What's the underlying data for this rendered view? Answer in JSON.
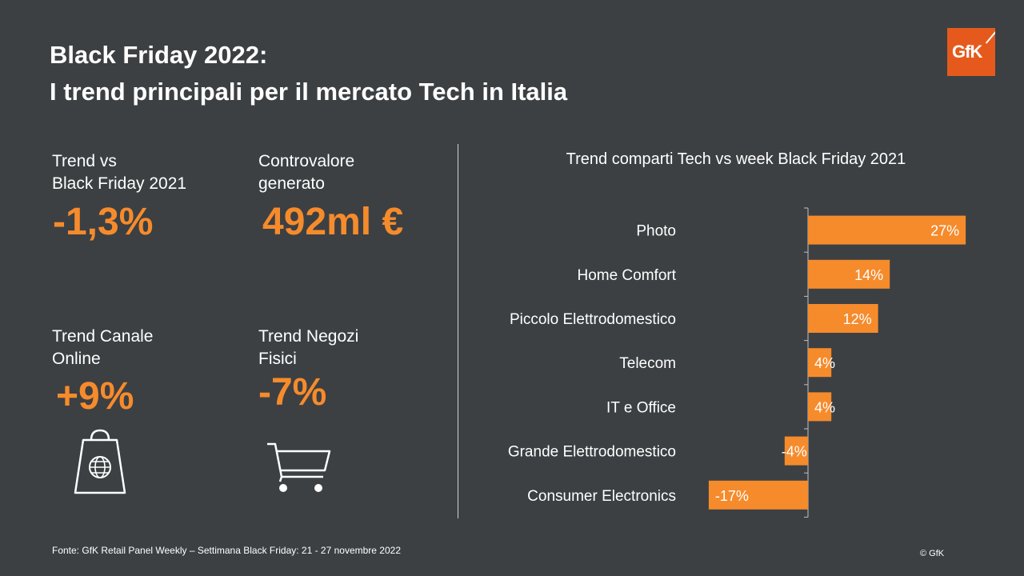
{
  "header": {
    "title_line1": "Black Friday 2022:",
    "title_line2": "I trend principali per il mercato Tech in Italia",
    "logo_text": "GfK"
  },
  "kpis": {
    "trend_vs": {
      "label_line1": "Trend vs",
      "label_line2": "Black Friday 2021",
      "value": "-1,3%"
    },
    "controvalore": {
      "label_line1": "Controvalore",
      "label_line2": "generato",
      "value": "492ml €"
    },
    "online": {
      "label_line1": "Trend Canale",
      "label_line2": "Online",
      "value": "+9%",
      "icon": "shopping-bag-globe-icon"
    },
    "negozi": {
      "label_line1": "Trend Negozi",
      "label_line2": "Fisici",
      "value": "-7%",
      "icon": "shopping-cart-icon"
    }
  },
  "colors": {
    "background": "#3c4043",
    "accent": "#f68b2c",
    "logo": "#e55a1c",
    "text": "#ffffff"
  },
  "chart_data": {
    "type": "bar",
    "orientation": "horizontal",
    "title": "Trend comparti Tech vs week Black Friday 2021",
    "categories": [
      "Photo",
      "Home Comfort",
      "Piccolo Elettrodomestico",
      "Telecom",
      "IT e Office",
      "Grande Elettrodomestico",
      "Consumer Electronics"
    ],
    "values": [
      27,
      14,
      12,
      4,
      4,
      -4,
      -17
    ],
    "data_labels": [
      "27%",
      "14%",
      "12%",
      "4%",
      "4%",
      "-4%",
      "-17%"
    ],
    "bar_color": "#f68b2c",
    "grid": false
  },
  "footer": {
    "source": "Fonte: GfK Retail Panel Weekly – Settimana Black Friday:  21 - 27 novembre 2022",
    "copyright": "© GfK"
  }
}
